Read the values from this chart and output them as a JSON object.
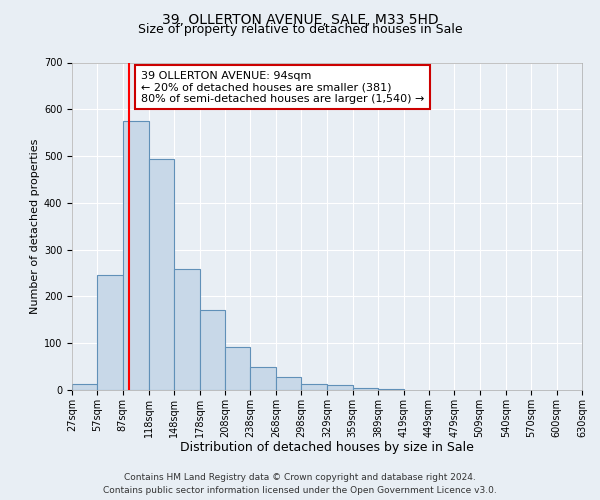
{
  "title": "39, OLLERTON AVENUE, SALE, M33 5HD",
  "subtitle": "Size of property relative to detached houses in Sale",
  "xlabel": "Distribution of detached houses by size in Sale",
  "ylabel": "Number of detached properties",
  "bar_values": [
    12,
    245,
    575,
    493,
    258,
    170,
    92,
    50,
    27,
    13,
    10,
    5,
    3
  ],
  "bar_lefts": [
    27,
    57,
    87,
    118,
    148,
    178,
    208,
    238,
    268,
    298,
    329,
    359,
    389
  ],
  "bar_widths": [
    30,
    30,
    31,
    30,
    30,
    30,
    30,
    30,
    30,
    31,
    30,
    30,
    30
  ],
  "tick_positions": [
    27,
    57,
    87,
    118,
    148,
    178,
    208,
    238,
    268,
    298,
    329,
    359,
    389,
    419,
    449,
    479,
    509,
    540,
    570,
    600,
    630
  ],
  "tick_labels": [
    "27sqm",
    "57sqm",
    "87sqm",
    "118sqm",
    "148sqm",
    "178sqm",
    "208sqm",
    "238sqm",
    "268sqm",
    "298sqm",
    "329sqm",
    "359sqm",
    "389sqm",
    "419sqm",
    "449sqm",
    "479sqm",
    "509sqm",
    "540sqm",
    "570sqm",
    "600sqm",
    "630sqm"
  ],
  "bar_color": "#c8d8e8",
  "bar_edge_color": "#6090b8",
  "bar_edge_width": 0.8,
  "red_line_x": 94,
  "xlim": [
    27,
    630
  ],
  "ylim": [
    0,
    700
  ],
  "yticks": [
    0,
    100,
    200,
    300,
    400,
    500,
    600,
    700
  ],
  "annotation_title": "39 OLLERTON AVENUE: 94sqm",
  "annotation_line1": "← 20% of detached houses are smaller (381)",
  "annotation_line2": "80% of semi-detached houses are larger (1,540) →",
  "annotation_box_facecolor": "#ffffff",
  "annotation_box_edgecolor": "#cc0000",
  "background_color": "#e8eef4",
  "grid_color": "#ffffff",
  "title_fontsize": 10,
  "subtitle_fontsize": 9,
  "xlabel_fontsize": 9,
  "ylabel_fontsize": 8,
  "tick_fontsize": 7,
  "annotation_fontsize": 8,
  "footer_fontsize": 6.5,
  "footer1": "Contains HM Land Registry data © Crown copyright and database right 2024.",
  "footer2": "Contains public sector information licensed under the Open Government Licence v3.0."
}
